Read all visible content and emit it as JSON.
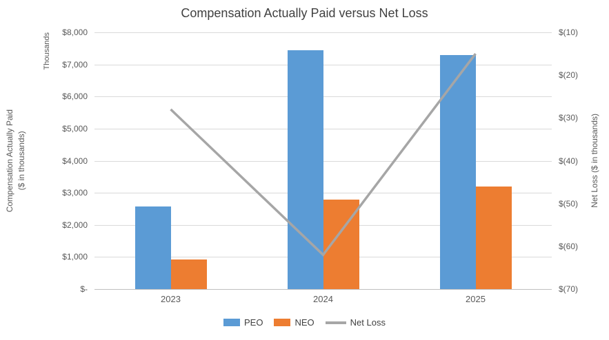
{
  "title": "Compensation Actually Paid versus Net Loss",
  "chart_data": {
    "type": "bar",
    "subtype": "combo-bar-line",
    "categories": [
      "2023",
      "2024",
      "2025"
    ],
    "series": [
      {
        "name": "PEO",
        "type": "bar",
        "axis": "left",
        "color": "#5B9BD5",
        "values": [
          2570,
          7450,
          7300
        ]
      },
      {
        "name": "NEO",
        "type": "bar",
        "axis": "left",
        "color": "#ED7D31",
        "values": [
          920,
          2780,
          3200
        ]
      },
      {
        "name": "Net Loss",
        "type": "line",
        "axis": "right",
        "color": "#A6A6A6",
        "values": [
          -28,
          -62,
          -15
        ]
      }
    ],
    "left_axis": {
      "title_lines": [
        "Compensation Actually Paid",
        "($ in thousands)"
      ],
      "units_label": "Thousands",
      "min": 0,
      "max": 8000,
      "ticks": [
        "$8,000",
        "$7,000",
        "$6,000",
        "$5,000",
        "$4,000",
        "$3,000",
        "$2,000",
        "$1,000",
        "$-"
      ]
    },
    "right_axis": {
      "title": "Net Loss ($ in thousands)",
      "min": -70,
      "max": -10,
      "ticks": [
        "$(10)",
        "$(20)",
        "$(30)",
        "$(40)",
        "$(50)",
        "$(60)",
        "$(70)"
      ]
    },
    "legend": {
      "position": "bottom",
      "labels": [
        "PEO",
        "NEO",
        "Net Loss"
      ]
    },
    "grid": "horizontal-light"
  }
}
